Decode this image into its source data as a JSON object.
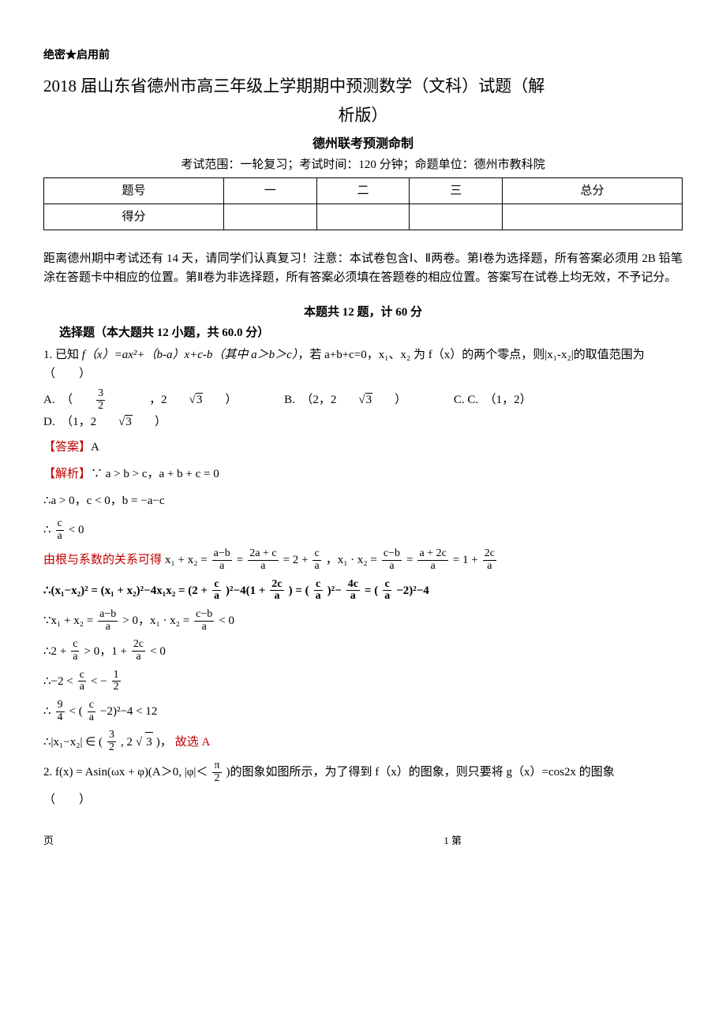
{
  "header": {
    "confidential": "绝密★启用前",
    "title_line1": "2018 届山东省德州市高三年级上学期期中预测数学（文科）试题（解",
    "title_line2": "析版）",
    "subtitle": "德州联考预测命制",
    "range": "考试范围：一轮复习；考试时间：120 分钟；命题单位：德州市教科院"
  },
  "score_table": {
    "headers": [
      "题号",
      "一",
      "二",
      "三",
      "总分"
    ],
    "row2_label": "得分"
  },
  "instructions": "距离德州期中考试还有 14 天，请同学们认真复习！注意：本试卷包含Ⅰ、Ⅱ两卷。第Ⅰ卷为选择题，所有答案必须用 2B 铅笔涂在答题卡中相应的位置。第Ⅱ卷为非选择题，所有答案必须填在答题卷的相应位置。答案写在试卷上均无效，不予记分。",
  "section": {
    "header": "本题共 12 题，计 60 分",
    "sub": "选择题（本大题共 12 小题，共 60.0 分）"
  },
  "q1": {
    "stem_prefix": "1.  已知 ",
    "stem_formula": "f（x）=ax²+（b-a）x+c-b（其中 a＞b＞c）",
    "stem_mid": "，若 ",
    "stem_cond": "a+b+c=0，x₁、x₂ 为 f（x）的两个零点，则|x₁-x₂|的取值范围为（　　）",
    "optA_label": "A.　（",
    "optA_val": "，2",
    "optA_close": "）",
    "optB_label": "B.　（2，2",
    "optB_close": "）",
    "optC_label": "C. C.　（1，2）",
    "optD_label": "D.　（1，2",
    "optD_close": "）",
    "answer_label": "【答案】",
    "answer": "A",
    "analysis_label": "【解析】",
    "line1": "∵ a > b > c，a + b + c = 0",
    "line2": "∴a > 0，c < 0，b = −a−c",
    "line3_pre": "∴",
    "line3_post": " < 0",
    "line4_red": "由根与系数的关系可得",
    "line4a": "x₁ + x₂ = ",
    "line4b": " = ",
    "line4c": " = 2 + ",
    "line4d": "，x₁ · x₂ = ",
    "line4e": " = ",
    "line4f": " = 1 + ",
    "line5": "∴(x₁−x₂)² = (x₁ + x₂)²−4x₁x₂ = (2 + ",
    "line5b": ")²−4(1 + ",
    "line5c": ") = (",
    "line5d": ")²−",
    "line5e": " = (",
    "line5f": "−2)²−4",
    "line6a": "∵x₁ + x₂ = ",
    "line6b": " > 0，x₁ · x₂ = ",
    "line6c": " < 0",
    "line7a": "∴2 + ",
    "line7b": " > 0，1 + ",
    "line7c": " < 0",
    "line8a": "∴−2 < ",
    "line8b": " < −",
    "line9a": "∴",
    "line9b": " < (",
    "line9c": "−2)²−4 < 12",
    "line10a": "∴|x₁−x₂| ∈ (",
    "line10b": ", 2",
    "line10c": ")，",
    "line10_red": "故选 A"
  },
  "q2": {
    "stem_a": "2.  f(x) = Asin(ωx + φ)(A＞0, |φ|＜",
    "stem_b": ")的图象如图所示，为了得到 f（x）的图象，则只要将 g（x）=cos2x 的图象",
    "stem_c": "（　　）"
  },
  "footer": {
    "left": "页",
    "right": "1 第"
  },
  "colors": {
    "text": "#000000",
    "red": "#c00000",
    "background": "#ffffff",
    "border": "#000000"
  }
}
